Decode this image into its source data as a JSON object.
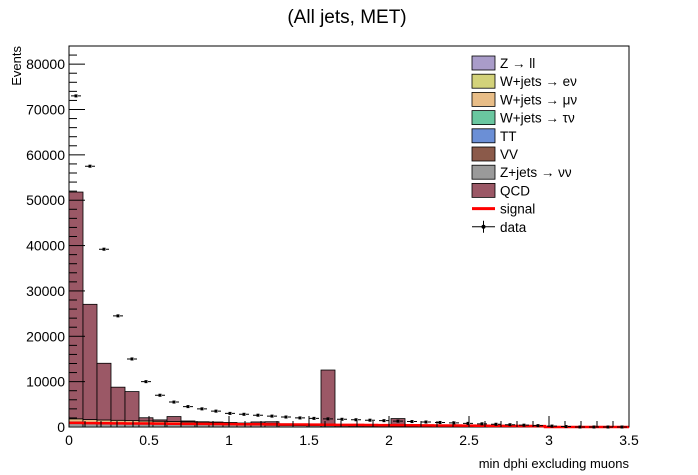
{
  "chart_data": {
    "type": "bar",
    "title": "(All jets, MET)",
    "xlabel": "min dphi excluding muons",
    "ylabel": "Events",
    "xlim": [
      0,
      3.5
    ],
    "ylim": [
      0,
      84000
    ],
    "x_ticks": [
      "0",
      "0.5",
      "1",
      "1.5",
      "2",
      "2.5",
      "3",
      "3.5"
    ],
    "y_ticks": [
      "10000",
      "20000",
      "30000",
      "40000",
      "50000",
      "60000",
      "70000",
      "80000"
    ],
    "x_tick_values": [
      0,
      0.5,
      1,
      1.5,
      2,
      2.5,
      3,
      3.5
    ],
    "y_tick_values": [
      10000,
      20000,
      30000,
      40000,
      50000,
      60000,
      70000,
      80000
    ],
    "y_zero_label": "0",
    "bin_width": 0.0875,
    "bin_edges_start": 0,
    "legend_position": "top-right",
    "legend": [
      {
        "label": "Z → ll",
        "color": "#a99cc9",
        "kind": "box"
      },
      {
        "label": "W+jets → eν",
        "color": "#d3d27a",
        "kind": "box"
      },
      {
        "label": "W+jets → μν",
        "color": "#e8bd87",
        "kind": "box"
      },
      {
        "label": "W+jets → τν",
        "color": "#6ac7a0",
        "kind": "box"
      },
      {
        "label": "TT",
        "color": "#6b8fd6",
        "kind": "box"
      },
      {
        "label": "VV",
        "color": "#8b5a4a",
        "kind": "box"
      },
      {
        "label": "Z+jets → νν",
        "color": "#9a9a9a",
        "kind": "box"
      },
      {
        "label": "QCD",
        "color": "#9b5866",
        "kind": "box"
      },
      {
        "label": "signal",
        "color": "#ff0000",
        "kind": "line"
      },
      {
        "label": "data",
        "color": "#000000",
        "kind": "marker"
      }
    ],
    "series": [
      {
        "name": "Z+jets → νν",
        "color": "#9a9a9a",
        "values": [
          1100,
          1000,
          950,
          900,
          850,
          800,
          750,
          700,
          650,
          600,
          560,
          520,
          480,
          440,
          400,
          360,
          320,
          300,
          280,
          260,
          240,
          220,
          200,
          180,
          160,
          140,
          120,
          100,
          80,
          60,
          40,
          20,
          0,
          0,
          0,
          0,
          0,
          0,
          0,
          0
        ]
      },
      {
        "name": "W+jets → μν",
        "color": "#e8bd87",
        "values": [
          700,
          650,
          600,
          580,
          560,
          540,
          520,
          500,
          480,
          460,
          440,
          420,
          400,
          380,
          360,
          340,
          320,
          300,
          280,
          260,
          240,
          220,
          200,
          180,
          160,
          140,
          120,
          100,
          80,
          60,
          40,
          20,
          0,
          0,
          0,
          0,
          0,
          0,
          0,
          0
        ]
      },
      {
        "name": "QCD",
        "color": "#9b5866",
        "values": [
          50000,
          25400,
          12500,
          7300,
          6400,
          700,
          300,
          1100,
          200,
          100,
          100,
          50,
          0,
          300,
          400,
          0,
          0,
          0,
          12000,
          0,
          0,
          0,
          0,
          1500,
          0,
          0,
          0,
          0,
          0,
          0,
          0,
          0,
          0,
          0,
          0,
          0,
          0,
          0,
          0,
          0
        ]
      }
    ],
    "signal": {
      "name": "signal",
      "color": "#ff0000",
      "values": [
        900,
        850,
        820,
        800,
        780,
        760,
        740,
        720,
        700,
        680,
        660,
        640,
        620,
        600,
        580,
        560,
        540,
        520,
        500,
        480,
        460,
        440,
        420,
        400,
        380,
        360,
        340,
        320,
        300,
        280,
        260,
        240,
        220,
        200,
        0,
        0,
        0,
        0,
        0,
        0
      ]
    },
    "data": {
      "name": "data",
      "values": [
        73000,
        57500,
        39200,
        24500,
        15000,
        10000,
        7000,
        5500,
        4500,
        4000,
        3500,
        3000,
        2800,
        2600,
        2400,
        2200,
        2000,
        1900,
        1800,
        1700,
        1600,
        1500,
        1400,
        1300,
        1200,
        1100,
        1000,
        900,
        800,
        700,
        600,
        500,
        400,
        300,
        200,
        100,
        0,
        0,
        0,
        0
      ]
    }
  }
}
